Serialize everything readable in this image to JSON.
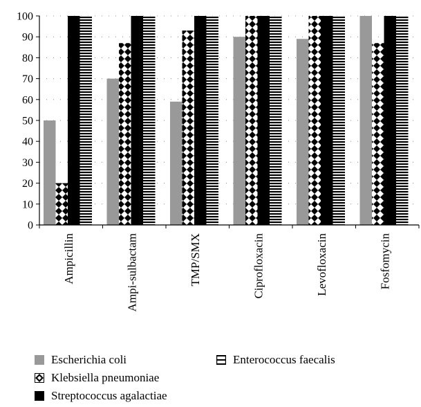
{
  "chart_data": {
    "type": "bar",
    "title": "",
    "xlabel": "",
    "ylabel": "",
    "ylim": [
      0,
      100
    ],
    "yticks": [
      0,
      10,
      20,
      30,
      40,
      50,
      60,
      70,
      80,
      90,
      100
    ],
    "grid": "dotted",
    "legend_position": "bottom",
    "categories": [
      "Ampicillin",
      "Ampi-sulbactam",
      "TMP/SMX",
      "Ciprofloxacin",
      "Levofloxacin",
      "Fosfomycin"
    ],
    "series": [
      {
        "name": "Escherichia coli",
        "values": [
          50,
          70,
          59,
          90,
          89,
          100
        ],
        "pattern": "solid-gray",
        "color": "#999999"
      },
      {
        "name": "Klebsiella pneumoniae",
        "values": [
          20,
          87,
          93,
          100,
          100,
          87
        ],
        "pattern": "diamond-checker",
        "color": "#000000"
      },
      {
        "name": "Streptococcus agalactiae",
        "values": [
          100,
          100,
          100,
          100,
          100,
          100
        ],
        "pattern": "solid-black",
        "color": "#000000"
      },
      {
        "name": "Enterococcus faecalis",
        "values": [
          100,
          100,
          100,
          100,
          100,
          100
        ],
        "pattern": "horizontal-stripes",
        "color": "#000000"
      }
    ]
  }
}
